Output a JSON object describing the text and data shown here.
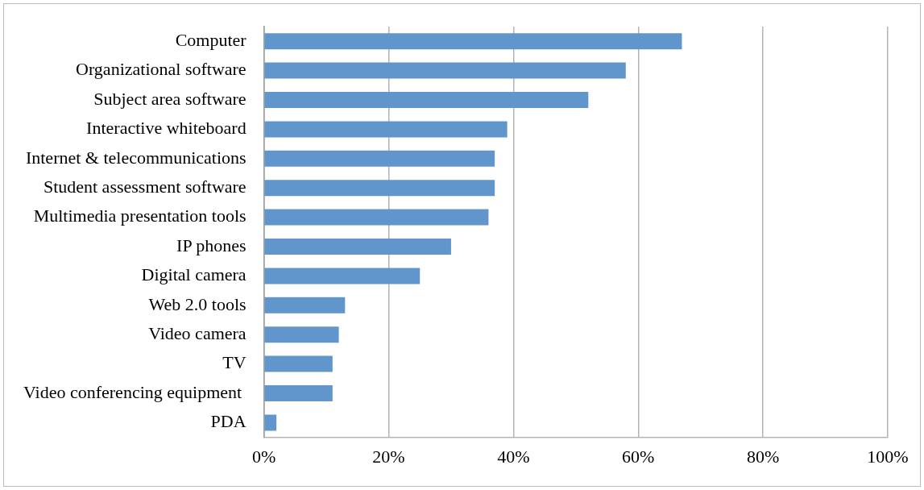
{
  "chart_data": {
    "type": "bar",
    "orientation": "horizontal",
    "categories": [
      "Computer",
      "Organizational software",
      "Subject area software",
      "Interactive whiteboard",
      "Internet & telecommunications",
      "Student assessment software",
      "Multimedia presentation tools",
      "IP phones",
      "Digital camera",
      "Web 2.0 tools",
      "Video camera",
      "TV",
      "Video conferencing equipment ",
      "PDA"
    ],
    "values": [
      67,
      58,
      52,
      39,
      37,
      37,
      36,
      30,
      25,
      13,
      12,
      11,
      11,
      2
    ],
    "color": "#6096cb",
    "xlim": [
      0,
      100
    ],
    "xticks": [
      {
        "value": 0,
        "label": "0%"
      },
      {
        "value": 20,
        "label": "20%"
      },
      {
        "value": 40,
        "label": "40%"
      },
      {
        "value": 60,
        "label": "60%"
      },
      {
        "value": 80,
        "label": "80%"
      },
      {
        "value": 100,
        "label": "100%"
      }
    ],
    "grid": "x",
    "legend": false
  }
}
